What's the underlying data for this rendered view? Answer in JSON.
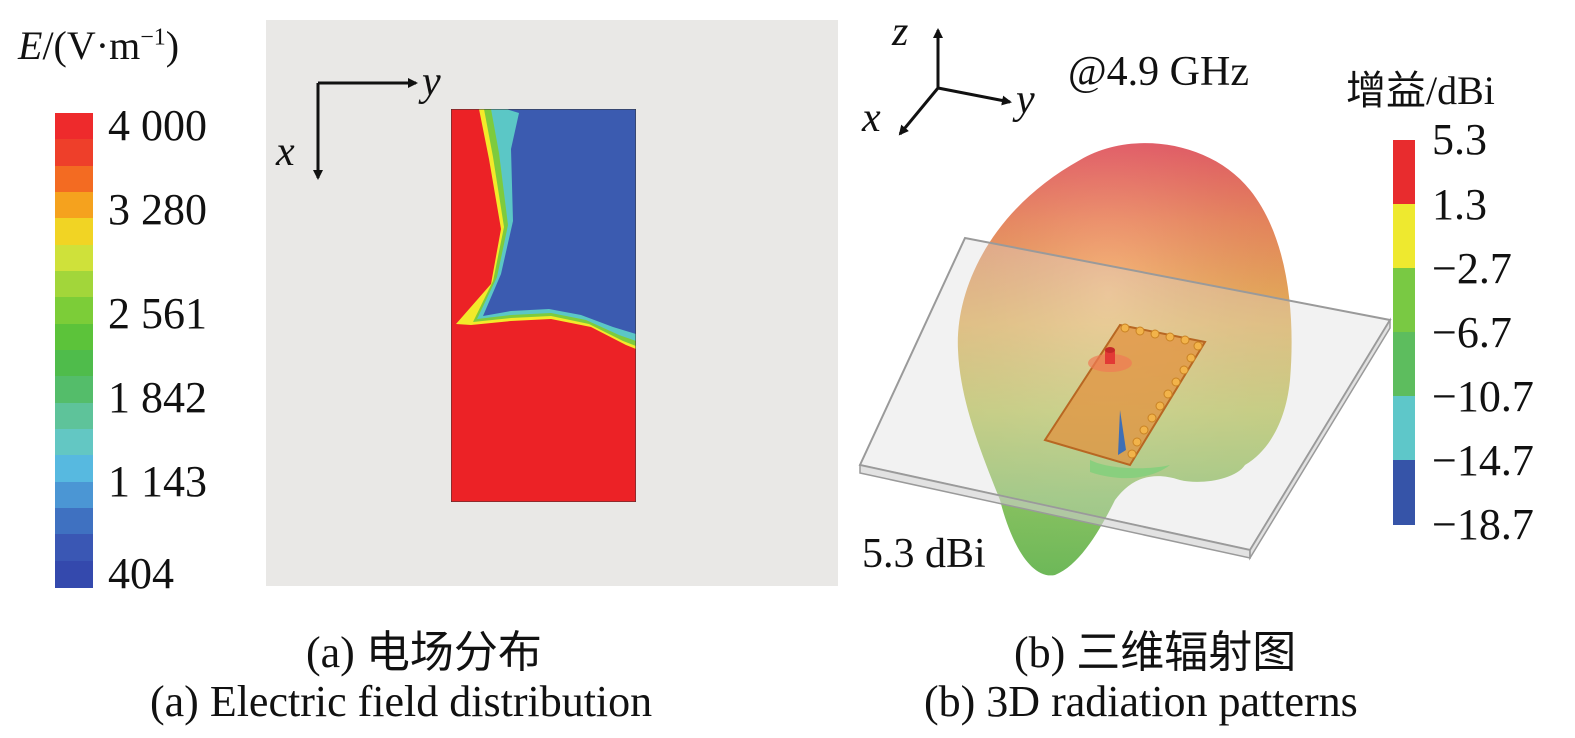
{
  "panel_a": {
    "colorbar": {
      "title_symbol": "E",
      "title_unit": "/(V·m",
      "title_sup": "−1",
      "title_close": ")",
      "ticks": [
        "4 000",
        "3 280",
        "2 561",
        "1 842",
        "1 143",
        "404"
      ],
      "colors": [
        "#ee2a2c",
        "#ee3f2a",
        "#f36b22",
        "#f5a21e",
        "#f1d424",
        "#cfe13a",
        "#a2d63a",
        "#7ccd38",
        "#5cc33a",
        "#4fbc4b",
        "#54bd6a",
        "#5ec39a",
        "#63c7c3",
        "#57b9e0",
        "#4b96d4",
        "#3f71c1",
        "#3a57b4",
        "#3449ad"
      ]
    },
    "axes": {
      "horizontal": "y",
      "vertical": "x"
    },
    "caption_cn": "(a) 电场分布",
    "caption_en": "(a) Electric field distribution"
  },
  "panel_b": {
    "axes": {
      "z": "z",
      "x": "x",
      "y": "y"
    },
    "frequency": "@4.9 GHz",
    "max_gain": "5.3 dBi",
    "colorbar": {
      "title": "增益/dBi",
      "ticks": [
        "5.3",
        "1.3",
        "−2.7",
        "−6.7",
        "−10.7",
        "−14.7",
        "−18.7"
      ],
      "colors": [
        "#e82c2e",
        "#eee92f",
        "#79c943",
        "#5dbd5e",
        "#5ec7c9",
        "#3654a8"
      ]
    },
    "caption_cn": "(b) 三维辐射图",
    "caption_en": "(b) 3D radiation patterns"
  }
}
